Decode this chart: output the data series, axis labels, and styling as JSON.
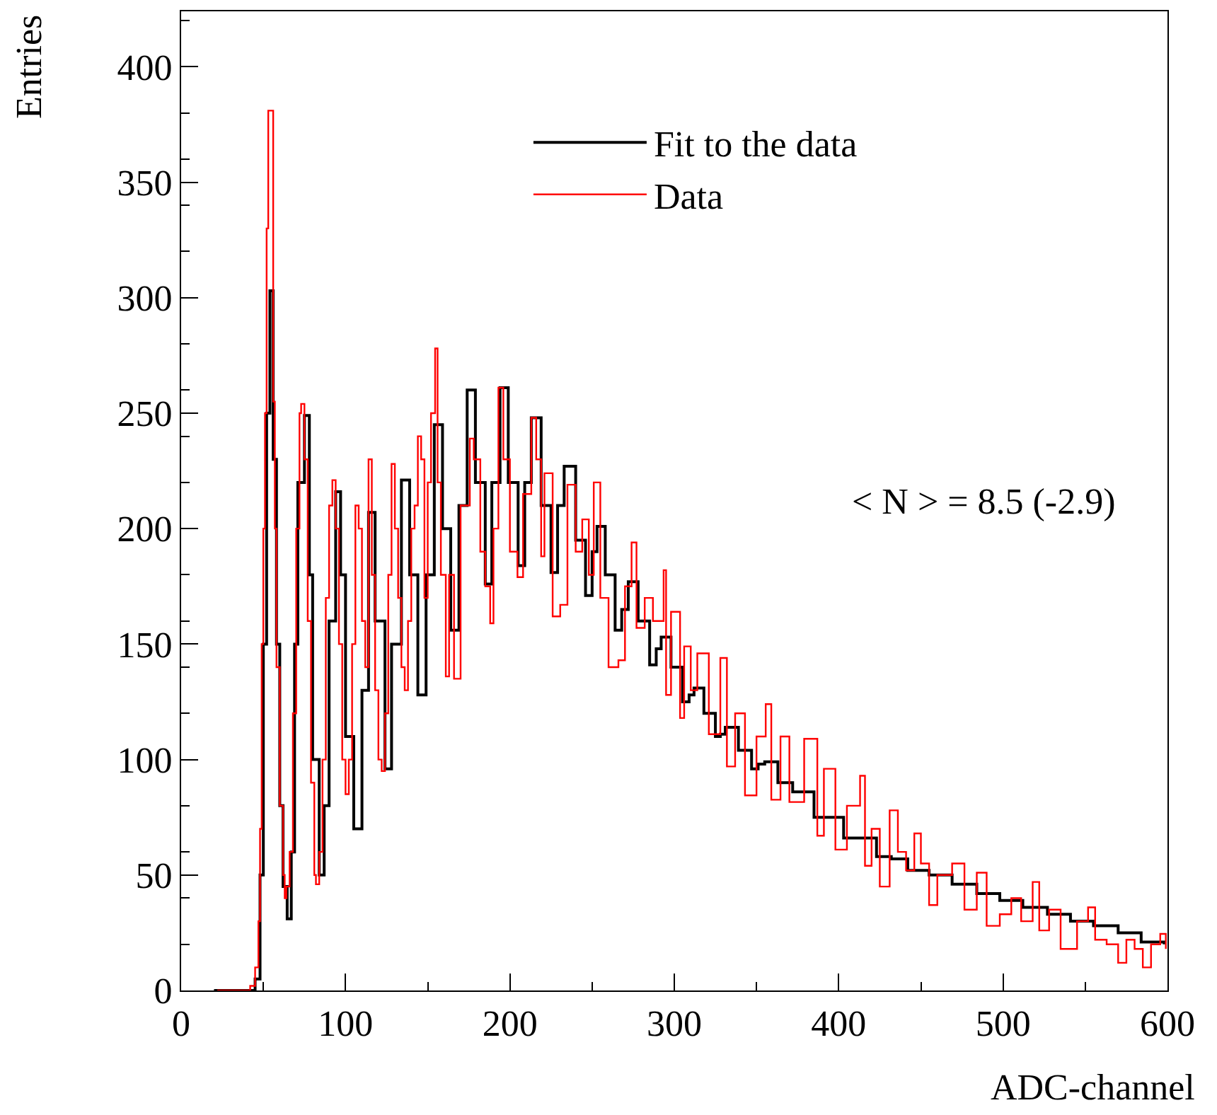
{
  "chart_data": {
    "type": "step",
    "xlabel": "ADC-channel",
    "ylabel": "Entries",
    "xlim": [
      0,
      600
    ],
    "ylim": [
      0,
      424
    ],
    "xticks": [
      0,
      100,
      200,
      300,
      400,
      500,
      600
    ],
    "yticks": [
      0,
      50,
      100,
      150,
      200,
      250,
      300,
      350,
      400
    ],
    "grid": false,
    "legend": "top right",
    "marker": "none",
    "line_style": "solid",
    "annotations": [
      "< N > = 8.5 (-2.9)"
    ],
    "series": [
      {
        "name": "Fit to the data",
        "color": "#000000",
        "x": [
          20,
          40,
          45,
          48,
          50,
          52,
          54,
          56,
          58,
          60,
          62,
          64.5,
          67,
          69,
          71,
          75,
          78,
          80,
          84,
          87,
          90,
          94,
          97,
          100,
          105,
          110,
          114,
          118,
          124,
          128,
          134,
          139,
          144,
          149,
          154,
          159,
          164,
          169,
          174,
          179,
          185,
          189,
          194,
          199,
          205,
          209,
          213,
          219,
          225,
          229,
          233,
          240,
          246,
          250,
          253,
          258,
          264,
          268,
          272,
          278,
          285,
          289,
          292,
          298,
          305,
          309,
          312,
          318,
          325,
          328,
          331,
          339,
          347,
          351,
          355,
          363,
          372,
          385,
          392,
          403,
          412,
          423,
          432,
          442,
          455,
          469,
          484,
          498,
          512,
          527,
          541,
          555,
          570,
          584,
          598
        ],
        "values": [
          0,
          0,
          5,
          50,
          150,
          250,
          303,
          230,
          150,
          80,
          45,
          31,
          60,
          150,
          220,
          249,
          180,
          100,
          50,
          80,
          160,
          216,
          180,
          110,
          70,
          130,
          207,
          160,
          96,
          150,
          221,
          180,
          128,
          180,
          245,
          200,
          156,
          210,
          260,
          220,
          176,
          220,
          261,
          220,
          184,
          220,
          248,
          210,
          181,
          210,
          227,
          195,
          171,
          190,
          201,
          180,
          156,
          165,
          177,
          160,
          141,
          148,
          153,
          140,
          125,
          128,
          131,
          120,
          110,
          111,
          114,
          104,
          96,
          98,
          99,
          90,
          86,
          75,
          75,
          66,
          66,
          58,
          57,
          52,
          50,
          46,
          42,
          39,
          36,
          33,
          30,
          28,
          25,
          21,
          20
        ]
      },
      {
        "name": "Data",
        "color": "#ff0000",
        "x": [
          22,
          40,
          42,
          45,
          47,
          48,
          49,
          50,
          51,
          52,
          53,
          55,
          56,
          57,
          58,
          60,
          62,
          63,
          64,
          66,
          68,
          70,
          72,
          73,
          75,
          77,
          79,
          81,
          82,
          84,
          86,
          88,
          90,
          92,
          94,
          96,
          98,
          100,
          102,
          104,
          106,
          108,
          110,
          112,
          114,
          116,
          118,
          120,
          122,
          124,
          126,
          128,
          130,
          132,
          134,
          136,
          138,
          140,
          142,
          144,
          146,
          148,
          150,
          152,
          154.5,
          156,
          158,
          161,
          163,
          166,
          170,
          175.6,
          178,
          182,
          185,
          188,
          190,
          193,
          196,
          200,
          204.6,
          208,
          213,
          216,
          219,
          221,
          226,
          230.6,
          235,
          240,
          244,
          248,
          251,
          255,
          260,
          266,
          270,
          274,
          277,
          282,
          287,
          293.5,
          295,
          298,
          303.5,
          306,
          310,
          314,
          321,
          328,
          332,
          337,
          343,
          350,
          355.6,
          359,
          364.6,
          370,
          379,
          387,
          391,
          398,
          405,
          413,
          416,
          420,
          425,
          431,
          436,
          441,
          446,
          450,
          455,
          460,
          469,
          476.5,
          484,
          490,
          498,
          505,
          511,
          518,
          522,
          528,
          535,
          545,
          551.7,
          556,
          563,
          570,
          575,
          580,
          585,
          590,
          595.6,
          599
        ],
        "values": [
          0,
          0,
          2,
          10,
          30,
          70,
          150,
          200,
          250,
          330,
          381,
          381,
          255,
          200,
          140,
          80,
          50,
          40,
          45,
          60,
          120,
          200,
          250,
          254,
          230,
          160,
          90,
          50,
          46,
          60,
          100,
          170,
          210,
          221,
          200,
          150,
          100,
          85,
          100,
          150,
          210,
          200,
          160,
          140,
          230,
          180,
          130,
          100,
          95,
          120,
          180,
          228,
          200,
          170,
          140,
          130,
          160,
          200,
          210,
          240,
          230,
          170,
          220,
          250,
          278,
          220,
          180,
          136,
          180,
          135,
          210,
          239,
          230,
          190,
          175,
          159,
          200,
          261,
          230,
          190,
          179,
          215,
          248,
          230,
          188,
          224,
          162,
          167,
          219,
          190,
          204,
          180,
          220,
          170,
          140,
          143,
          175,
          194,
          157,
          170,
          160,
          182,
          128,
          164,
          118,
          149,
          130,
          146,
          111,
          144,
          97,
          120,
          84.5,
          110,
          124,
          82.6,
          110,
          81.6,
          109,
          67,
          96,
          61,
          80,
          93,
          54,
          70,
          45,
          78,
          60,
          52,
          68,
          55,
          37,
          50,
          55,
          35,
          51,
          28,
          33,
          40,
          30,
          47,
          26,
          35,
          18,
          30,
          36,
          22,
          20,
          12,
          22,
          18,
          10,
          20,
          24.5,
          18
        ]
      }
    ]
  }
}
